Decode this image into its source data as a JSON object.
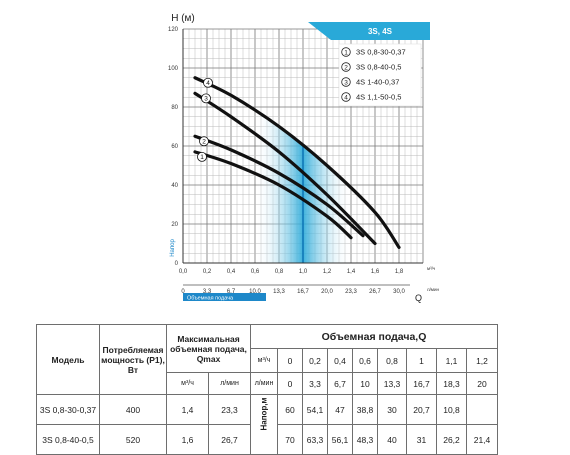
{
  "chart_data": {
    "type": "line",
    "ylabel": "H (м)",
    "y_axis_label_rotated": "Напор",
    "xlabel": "Q",
    "x_unit": "м³/ч",
    "x2_label": "Объемная подача",
    "x2_unit": "л/мин",
    "xlim": [
      0,
      1.8
    ],
    "ylim": [
      0,
      120
    ],
    "x_ticks": [
      "0,0",
      "0,2",
      "0,4",
      "0,6",
      "0,8",
      "1,0",
      "1,2",
      "1,4",
      "1,6",
      "1,8"
    ],
    "x2_ticks": [
      "0",
      "3,3",
      "6,7",
      "10,0",
      "13,3",
      "16,7",
      "20,0",
      "23,3",
      "26,7",
      "30,0"
    ],
    "y_ticks": [
      "0",
      "20",
      "40",
      "60",
      "80",
      "100",
      "120"
    ],
    "grid": true,
    "legend_title": "3S, 4S",
    "legend_position": "top-right",
    "highlight_range": [
      0.6,
      1.4
    ],
    "series": [
      {
        "marker": "1",
        "name": "3S 0,8-30-0,37",
        "x": [
          0.1,
          0.4,
          0.8,
          1.2,
          1.4
        ],
        "y": [
          57,
          51,
          40,
          24,
          13
        ]
      },
      {
        "marker": "2",
        "name": "3S 0,8-40-0,5",
        "x": [
          0.1,
          0.4,
          0.8,
          1.2,
          1.5
        ],
        "y": [
          65,
          58,
          46,
          30,
          14
        ]
      },
      {
        "marker": "3",
        "name": "4S 1-40-0,37",
        "x": [
          0.1,
          0.4,
          0.8,
          1.2,
          1.6
        ],
        "y": [
          87,
          75,
          57,
          35,
          10
        ]
      },
      {
        "marker": "4",
        "name": "4S 1,1-50-0,5",
        "x": [
          0.1,
          0.4,
          0.8,
          1.2,
          1.6,
          1.8
        ],
        "y": [
          95,
          86,
          70,
          50,
          26,
          8
        ]
      }
    ],
    "colors": {
      "curve": "#111111",
      "panel": "#29a9d8",
      "panel_dark": "#0d74b5",
      "header": "#29a9d8",
      "axis_label": "#1e88c9",
      "grid": "#8a8a8a"
    }
  },
  "table": {
    "headers": {
      "model": "Модель",
      "power": "Потребляемая мощность (P1), Вт",
      "qmax_title": "Максимальная объемная подача, Qmax",
      "qmax_m3h": "м³/ч",
      "qmax_lmin": "л/мин",
      "flow_title": "Объемная подача,Q",
      "unit_m3h": "м³/ч",
      "unit_lmin": "л/мин",
      "head": "Напор,м"
    },
    "flow_m3h": [
      "0",
      "0,2",
      "0,4",
      "0,6",
      "0,8",
      "1",
      "1,1",
      "1,2"
    ],
    "flow_lmin": [
      "0",
      "3,3",
      "6,7",
      "10",
      "13,3",
      "16,7",
      "18,3",
      "20"
    ],
    "rows": [
      {
        "model": "3S 0,8-30-0,37",
        "power": "400",
        "qmax_m3h": "1,4",
        "qmax_lmin": "23,3",
        "head": [
          "60",
          "54,1",
          "47",
          "38,8",
          "30",
          "20,7",
          "10,8",
          ""
        ]
      },
      {
        "model": "3S 0,8-40-0,5",
        "power": "520",
        "qmax_m3h": "1,6",
        "qmax_lmin": "26,7",
        "head": [
          "70",
          "63,3",
          "56,1",
          "48,3",
          "40",
          "31",
          "26,2",
          "21,4"
        ]
      }
    ]
  }
}
